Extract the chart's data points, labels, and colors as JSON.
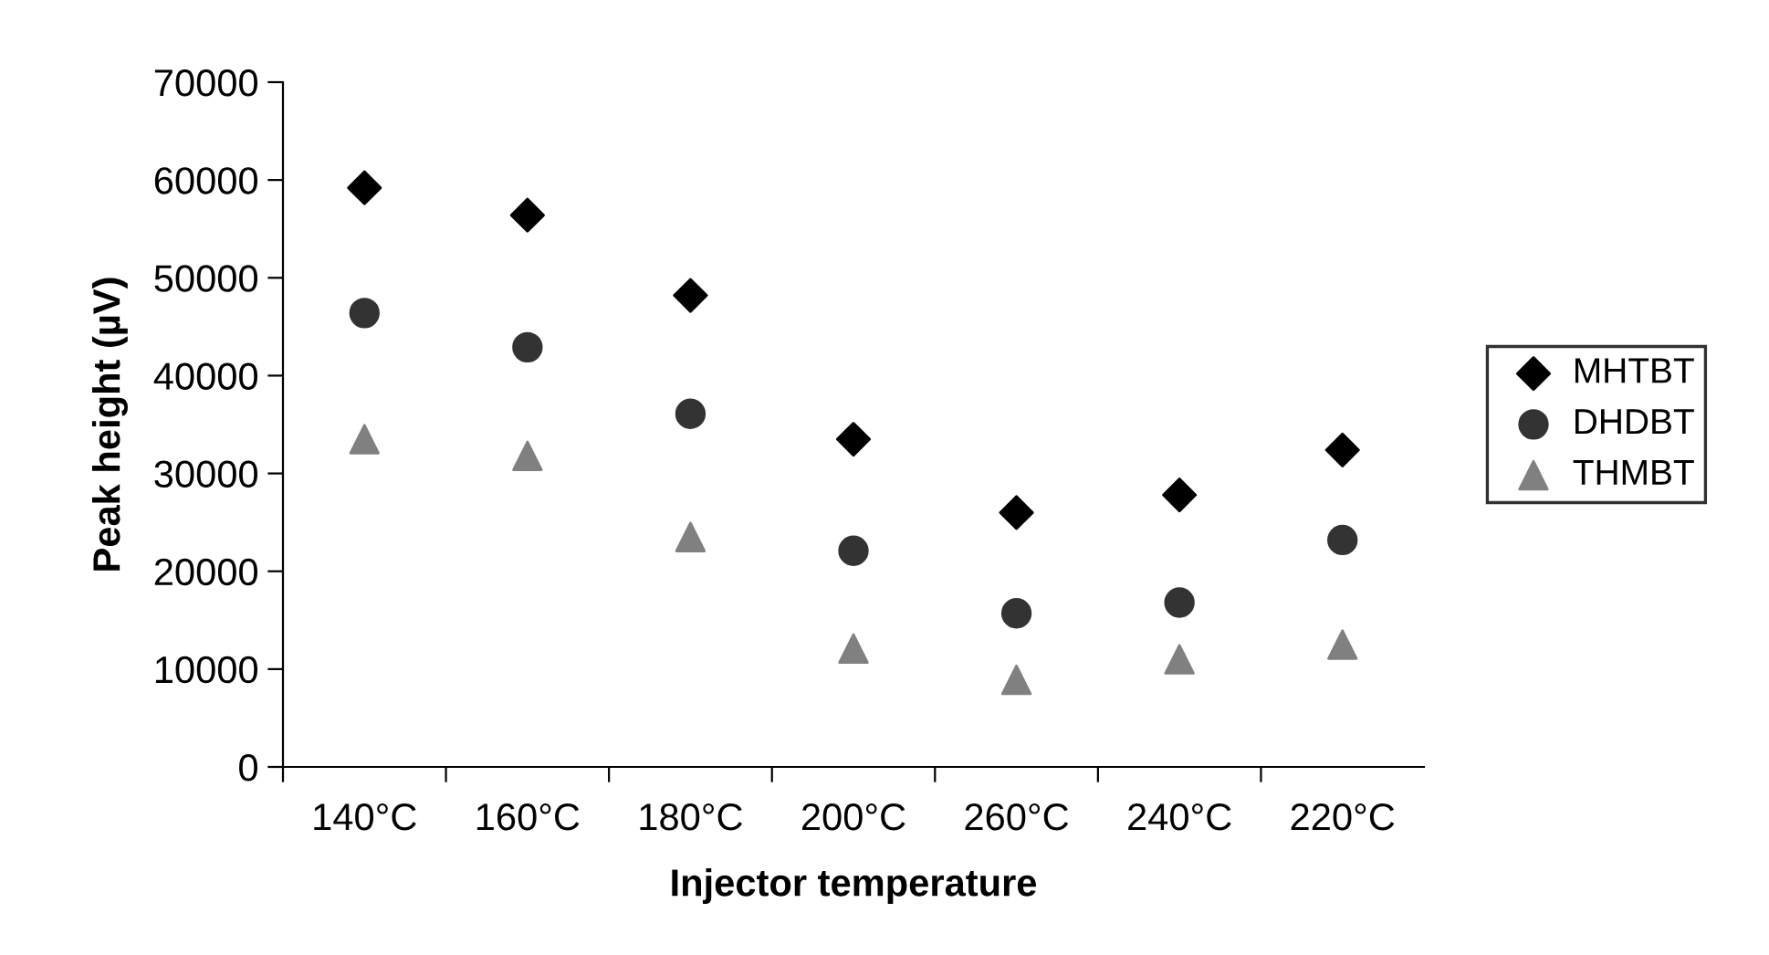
{
  "chart_data": {
    "type": "scatter",
    "xlabel": "Injector temperature",
    "ylabel": "Peak height (µV)",
    "categories": [
      "140°C",
      "160°C",
      "180°C",
      "200°C",
      "260°C",
      "240°C",
      "220°C"
    ],
    "series": [
      {
        "name": "MHTBT",
        "color": "#000000",
        "marker": "diamond",
        "values": [
          59200,
          56400,
          48200,
          33500,
          26000,
          27800,
          32400
        ]
      },
      {
        "name": "DHDBT",
        "color": "#333333",
        "marker": "circle",
        "values": [
          46400,
          42900,
          36100,
          22100,
          15700,
          16800,
          23200
        ]
      },
      {
        "name": "THMBT",
        "color": "#808080",
        "marker": "triangle",
        "values": [
          33500,
          31800,
          23500,
          12100,
          8900,
          11000,
          12500
        ]
      }
    ],
    "ylim": [
      0,
      70000
    ],
    "yticks": [
      0,
      10000,
      20000,
      30000,
      40000,
      50000,
      60000,
      70000
    ],
    "grid": false,
    "legend": "right"
  }
}
